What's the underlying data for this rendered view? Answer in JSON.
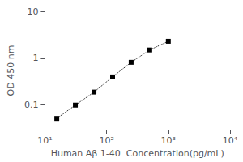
{
  "chart_data": {
    "type": "line",
    "x": [
      15.6,
      31.2,
      62.5,
      125,
      250,
      500,
      1000
    ],
    "values": [
      0.052,
      0.1,
      0.19,
      0.4,
      0.82,
      1.5,
      2.3
    ],
    "xlabel": "Human Aβ 1-40  Concentration(pg/mL)",
    "ylabel": "OD 450 nm",
    "xlim": [
      10,
      10000
    ],
    "ylim": [
      0.03,
      10
    ],
    "xticks": [
      {
        "value": 10,
        "label": "10¹"
      },
      {
        "value": 100,
        "label": "10²"
      },
      {
        "value": 1000,
        "label": "10³"
      },
      {
        "value": 10000,
        "label": "10⁴"
      }
    ],
    "yticks": [
      0.1,
      1,
      10
    ],
    "log": true,
    "grid": false,
    "color": "black",
    "marker": "square",
    "line_style": "dotted"
  }
}
